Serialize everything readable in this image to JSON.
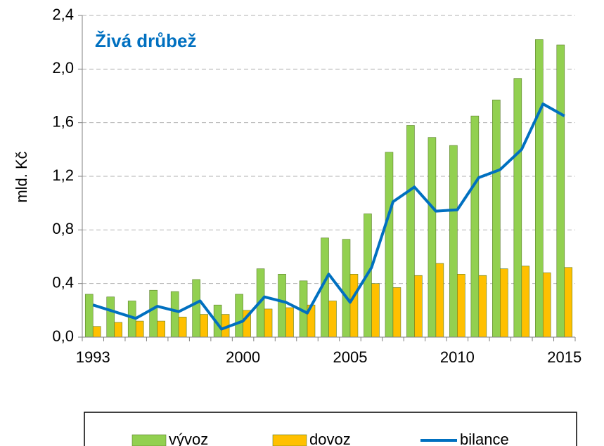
{
  "chart_data": {
    "type": "bar_line",
    "title": "Živá drůbež",
    "y_label": "mld. Kč",
    "categories": [
      "1993",
      null,
      null,
      null,
      null,
      null,
      null,
      "2000",
      null,
      null,
      null,
      null,
      "2005",
      null,
      null,
      null,
      null,
      "2010",
      null,
      null,
      null,
      null,
      "2015"
    ],
    "series": [
      {
        "name": "vývoz",
        "type": "bar",
        "color": "#92d050",
        "values": [
          0.32,
          0.3,
          0.27,
          0.35,
          0.34,
          0.43,
          0.24,
          0.32,
          0.51,
          0.47,
          0.42,
          0.74,
          0.73,
          0.92,
          1.38,
          1.58,
          1.49,
          1.43,
          1.65,
          1.77,
          1.93,
          2.22,
          2.18
        ]
      },
      {
        "name": "dovoz",
        "type": "bar",
        "color": "#ffc000",
        "values": [
          0.08,
          0.11,
          0.12,
          0.12,
          0.15,
          0.17,
          0.17,
          0.2,
          0.21,
          0.22,
          0.24,
          0.27,
          0.47,
          0.4,
          0.37,
          0.46,
          0.55,
          0.47,
          0.46,
          0.51,
          0.53,
          0.48,
          0.52
        ]
      },
      {
        "name": "bilance",
        "type": "line",
        "color": "#0070c0",
        "values": [
          0.24,
          0.19,
          0.14,
          0.23,
          0.19,
          0.27,
          0.06,
          0.12,
          0.3,
          0.26,
          0.18,
          0.47,
          0.26,
          0.52,
          1.01,
          1.12,
          0.94,
          0.95,
          1.19,
          1.25,
          1.4,
          1.74,
          1.65
        ]
      }
    ],
    "ylim": [
      0,
      2.4
    ],
    "yticks": [
      {
        "value": 0,
        "label": "0,0"
      },
      {
        "value": 0.4,
        "label": "0,4"
      },
      {
        "value": 0.8,
        "label": "0,8"
      },
      {
        "value": 1.2,
        "label": "1,2"
      },
      {
        "value": 1.6,
        "label": "1,6"
      },
      {
        "value": 2.0,
        "label": "2,0"
      },
      {
        "value": 2.4,
        "label": "2,4"
      }
    ],
    "grid": true,
    "legend": "bottom"
  }
}
